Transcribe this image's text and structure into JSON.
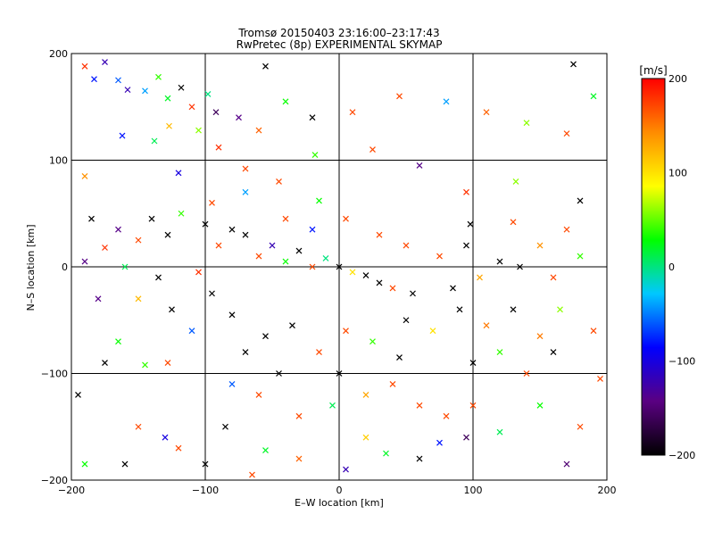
{
  "chart_data": {
    "type": "scatter",
    "title_lines": [
      "Tromsø 20150403 23:16:00–23:17:43",
      "RwPretec (8p) EXPERIMENTAL SKYMAP"
    ],
    "xlabel": "E–W location [km]",
    "ylabel": "N–S location [km]",
    "xlim": [
      -200,
      200
    ],
    "ylim": [
      -200,
      200
    ],
    "x_ticks": [
      -200,
      -100,
      0,
      100,
      200
    ],
    "y_ticks": [
      -200,
      -100,
      0,
      100,
      200
    ],
    "x_tick_labels": [
      "−200",
      "−100",
      "0",
      "100",
      "200"
    ],
    "y_tick_labels": [
      "−200",
      "−100",
      "0",
      "100",
      "200"
    ],
    "grid": true,
    "colorbar": {
      "label": "[m/s]",
      "range": [
        -200,
        200
      ],
      "ticks": [
        200,
        100,
        0,
        -100,
        -200
      ],
      "tick_labels": [
        "200",
        "100",
        "0",
        "−100",
        "−200"
      ],
      "colormap": [
        "#000000",
        "#5a0082",
        "#0000ff",
        "#00c8ff",
        "#00ff00",
        "#ffff00",
        "#ff8c00",
        "#ff0000"
      ]
    },
    "markers": {
      "large": "x",
      "small": "dot"
    },
    "points": [
      {
        "x": -190,
        "y": 188,
        "v": 180,
        "m": "x"
      },
      {
        "x": -183,
        "y": 176,
        "v": -80,
        "m": "x"
      },
      {
        "x": -175,
        "y": 192,
        "v": -120,
        "m": "x"
      },
      {
        "x": -165,
        "y": 175,
        "v": -60,
        "m": "x"
      },
      {
        "x": -158,
        "y": 166,
        "v": -120,
        "m": "x"
      },
      {
        "x": -145,
        "y": 165,
        "v": -40,
        "m": "x"
      },
      {
        "x": -135,
        "y": 178,
        "v": 40,
        "m": "x"
      },
      {
        "x": -128,
        "y": 158,
        "v": 20,
        "m": "x"
      },
      {
        "x": -118,
        "y": 168,
        "v": -200,
        "m": "x"
      },
      {
        "x": -110,
        "y": 150,
        "v": 180,
        "m": "x"
      },
      {
        "x": -98,
        "y": 162,
        "v": 0,
        "m": "x"
      },
      {
        "x": -92,
        "y": 145,
        "v": -160,
        "m": "x"
      },
      {
        "x": -162,
        "y": 123,
        "v": -80,
        "m": "x"
      },
      {
        "x": -138,
        "y": 118,
        "v": 10,
        "m": "x"
      },
      {
        "x": -127,
        "y": 132,
        "v": 120,
        "m": "x"
      },
      {
        "x": -105,
        "y": 128,
        "v": 60,
        "m": "x"
      },
      {
        "x": -90,
        "y": 112,
        "v": 180,
        "m": "x"
      },
      {
        "x": -75,
        "y": 140,
        "v": -140,
        "m": "x"
      },
      {
        "x": -60,
        "y": 128,
        "v": 160,
        "m": "x"
      },
      {
        "x": -40,
        "y": 155,
        "v": 30,
        "m": "x"
      },
      {
        "x": -20,
        "y": 140,
        "v": -200,
        "m": "x"
      },
      {
        "x": 10,
        "y": 145,
        "v": 170,
        "m": "x"
      },
      {
        "x": 45,
        "y": 160,
        "v": 170,
        "m": "x"
      },
      {
        "x": 80,
        "y": 155,
        "v": -40,
        "m": "x"
      },
      {
        "x": 110,
        "y": 145,
        "v": 160,
        "m": "x"
      },
      {
        "x": 140,
        "y": 135,
        "v": 60,
        "m": "x"
      },
      {
        "x": 170,
        "y": 125,
        "v": 170,
        "m": "x"
      },
      {
        "x": 175,
        "y": 190,
        "v": -200,
        "m": "x"
      },
      {
        "x": 190,
        "y": 160,
        "v": 20,
        "m": "x"
      },
      {
        "x": -55,
        "y": 188,
        "v": -200,
        "m": "x"
      },
      {
        "x": -190,
        "y": 85,
        "v": 140,
        "m": "x"
      },
      {
        "x": -120,
        "y": 88,
        "v": -100,
        "m": "x"
      },
      {
        "x": -70,
        "y": 92,
        "v": 170,
        "m": "x"
      },
      {
        "x": -18,
        "y": 105,
        "v": 40,
        "m": "x"
      },
      {
        "x": 25,
        "y": 110,
        "v": 170,
        "m": "x"
      },
      {
        "x": 60,
        "y": 95,
        "v": -140,
        "m": "x"
      },
      {
        "x": 95,
        "y": 70,
        "v": 180,
        "m": "x"
      },
      {
        "x": 132,
        "y": 80,
        "v": 60,
        "m": "x"
      },
      {
        "x": 180,
        "y": 62,
        "v": -200,
        "m": "x"
      },
      {
        "x": -185,
        "y": 45,
        "v": -200,
        "m": "x"
      },
      {
        "x": -165,
        "y": 35,
        "v": -140,
        "m": "x"
      },
      {
        "x": -140,
        "y": 45,
        "v": -200,
        "m": "x"
      },
      {
        "x": -118,
        "y": 50,
        "v": 40,
        "m": "x"
      },
      {
        "x": -100,
        "y": 40,
        "v": -200,
        "m": "x"
      },
      {
        "x": -175,
        "y": 18,
        "v": 180,
        "m": "x"
      },
      {
        "x": -150,
        "y": 25,
        "v": 170,
        "m": "x"
      },
      {
        "x": -128,
        "y": 30,
        "v": -200,
        "m": "x"
      },
      {
        "x": -190,
        "y": 5,
        "v": -140,
        "m": "x"
      },
      {
        "x": -160,
        "y": 0,
        "v": 10,
        "m": "x"
      },
      {
        "x": -135,
        "y": -10,
        "v": -200,
        "m": "x"
      },
      {
        "x": -105,
        "y": -5,
        "v": 180,
        "m": "x"
      },
      {
        "x": -180,
        "y": -30,
        "v": -140,
        "m": "x"
      },
      {
        "x": -150,
        "y": -30,
        "v": 120,
        "m": "x"
      },
      {
        "x": -125,
        "y": -40,
        "v": -200,
        "m": "x"
      },
      {
        "x": -95,
        "y": -25,
        "v": -200,
        "m": "x"
      },
      {
        "x": -80,
        "y": -45,
        "v": -200,
        "m": "x"
      },
      {
        "x": -55,
        "y": -65,
        "v": -200,
        "m": "x"
      },
      {
        "x": -35,
        "y": -55,
        "v": -200,
        "m": "x"
      },
      {
        "x": -165,
        "y": -70,
        "v": 30,
        "m": "x"
      },
      {
        "x": -175,
        "y": -90,
        "v": -200,
        "m": "x"
      },
      {
        "x": -145,
        "y": -92,
        "v": 40,
        "m": "x"
      },
      {
        "x": -128,
        "y": -90,
        "v": 170,
        "m": "x"
      },
      {
        "x": -110,
        "y": -60,
        "v": -60,
        "m": "x"
      },
      {
        "x": -70,
        "y": -80,
        "v": -200,
        "m": "x"
      },
      {
        "x": -195,
        "y": -120,
        "v": -200,
        "m": "x"
      },
      {
        "x": -150,
        "y": -150,
        "v": 170,
        "m": "x"
      },
      {
        "x": -130,
        "y": -160,
        "v": -100,
        "m": "x"
      },
      {
        "x": -120,
        "y": -170,
        "v": 170,
        "m": "x"
      },
      {
        "x": -85,
        "y": -150,
        "v": -200,
        "m": "x"
      },
      {
        "x": -55,
        "y": -172,
        "v": 20,
        "m": "x"
      },
      {
        "x": -30,
        "y": -180,
        "v": 160,
        "m": "x"
      },
      {
        "x": 5,
        "y": -190,
        "v": -120,
        "m": "x"
      },
      {
        "x": -190,
        "y": -185,
        "v": 30,
        "m": "x"
      },
      {
        "x": -160,
        "y": -185,
        "v": -200,
        "m": "x"
      },
      {
        "x": -100,
        "y": -185,
        "v": -200,
        "m": "x"
      },
      {
        "x": -65,
        "y": -195,
        "v": 170,
        "m": "x"
      },
      {
        "x": 0,
        "y": -100,
        "v": -200,
        "m": "x"
      },
      {
        "x": 20,
        "y": -120,
        "v": 130,
        "m": "x"
      },
      {
        "x": 40,
        "y": -110,
        "v": 170,
        "m": "x"
      },
      {
        "x": 60,
        "y": -130,
        "v": 170,
        "m": "x"
      },
      {
        "x": 80,
        "y": -140,
        "v": 170,
        "m": "x"
      },
      {
        "x": 100,
        "y": -130,
        "v": 170,
        "m": "x"
      },
      {
        "x": 95,
        "y": -160,
        "v": -160,
        "m": "x"
      },
      {
        "x": 120,
        "y": -155,
        "v": 10,
        "m": "x"
      },
      {
        "x": 150,
        "y": -130,
        "v": 30,
        "m": "x"
      },
      {
        "x": 20,
        "y": -160,
        "v": 110,
        "m": "x"
      },
      {
        "x": 35,
        "y": -175,
        "v": 20,
        "m": "x"
      },
      {
        "x": 60,
        "y": -180,
        "v": -200,
        "m": "x"
      },
      {
        "x": 75,
        "y": -165,
        "v": -80,
        "m": "x"
      },
      {
        "x": 170,
        "y": -185,
        "v": -150,
        "m": "x"
      },
      {
        "x": 180,
        "y": -150,
        "v": 170,
        "m": "x"
      },
      {
        "x": 195,
        "y": -105,
        "v": 170,
        "m": "x"
      },
      {
        "x": 190,
        "y": -60,
        "v": 170,
        "m": "x"
      },
      {
        "x": 50,
        "y": -50,
        "v": -200,
        "m": "x"
      },
      {
        "x": 70,
        "y": -60,
        "v": 100,
        "m": "x"
      },
      {
        "x": 90,
        "y": -40,
        "v": -200,
        "m": "x"
      },
      {
        "x": 110,
        "y": -55,
        "v": 150,
        "m": "x"
      },
      {
        "x": 130,
        "y": -40,
        "v": -200,
        "m": "x"
      },
      {
        "x": 150,
        "y": -65,
        "v": 150,
        "m": "x"
      },
      {
        "x": 165,
        "y": -40,
        "v": 60,
        "m": "x"
      },
      {
        "x": 85,
        "y": -20,
        "v": -200,
        "m": "x"
      },
      {
        "x": 105,
        "y": -10,
        "v": 130,
        "m": "x"
      },
      {
        "x": 135,
        "y": 0,
        "v": -200,
        "m": "x"
      },
      {
        "x": 160,
        "y": -10,
        "v": 170,
        "m": "x"
      },
      {
        "x": 75,
        "y": 10,
        "v": 170,
        "m": "x"
      },
      {
        "x": 95,
        "y": 20,
        "v": -200,
        "m": "x"
      },
      {
        "x": 120,
        "y": 5,
        "v": -200,
        "m": "x"
      },
      {
        "x": 150,
        "y": 20,
        "v": 140,
        "m": "x"
      },
      {
        "x": 180,
        "y": 10,
        "v": 40,
        "m": "x"
      },
      {
        "x": 98,
        "y": 40,
        "v": -200,
        "m": "x"
      },
      {
        "x": 130,
        "y": 42,
        "v": 170,
        "m": "x"
      },
      {
        "x": 170,
        "y": 35,
        "v": 170,
        "m": "x"
      },
      {
        "x": -60,
        "y": 10,
        "v": 170,
        "m": "x"
      },
      {
        "x": -50,
        "y": 20,
        "v": -120,
        "m": "x"
      },
      {
        "x": -40,
        "y": 5,
        "v": 30,
        "m": "x"
      },
      {
        "x": -30,
        "y": 15,
        "v": -200,
        "m": "x"
      },
      {
        "x": -20,
        "y": 0,
        "v": 170,
        "m": "x"
      },
      {
        "x": -10,
        "y": 8,
        "v": 0,
        "m": "x"
      },
      {
        "x": 0,
        "y": 0,
        "v": -200,
        "m": "x"
      },
      {
        "x": 10,
        "y": -5,
        "v": 100,
        "m": "x"
      },
      {
        "x": 20,
        "y": -8,
        "v": -200,
        "m": "x"
      },
      {
        "x": 30,
        "y": -15,
        "v": -200,
        "m": "x"
      },
      {
        "x": 40,
        "y": -20,
        "v": 170,
        "m": "x"
      },
      {
        "x": 55,
        "y": -25,
        "v": -200,
        "m": "x"
      },
      {
        "x": -70,
        "y": 30,
        "v": -200,
        "m": "x"
      },
      {
        "x": -80,
        "y": 35,
        "v": -200,
        "m": "x"
      },
      {
        "x": -90,
        "y": 20,
        "v": 170,
        "m": "x"
      },
      {
        "x": 5,
        "y": -60,
        "v": 170,
        "m": "x"
      },
      {
        "x": 25,
        "y": -70,
        "v": 40,
        "m": "x"
      },
      {
        "x": 45,
        "y": -85,
        "v": -200,
        "m": "x"
      },
      {
        "x": -15,
        "y": -80,
        "v": 170,
        "m": "x"
      },
      {
        "x": -45,
        "y": -100,
        "v": -200,
        "m": "x"
      },
      {
        "x": -40,
        "y": 45,
        "v": 170,
        "m": "x"
      },
      {
        "x": -20,
        "y": 35,
        "v": -80,
        "m": "x"
      },
      {
        "x": 5,
        "y": 45,
        "v": 170,
        "m": "x"
      },
      {
        "x": 30,
        "y": 30,
        "v": 170,
        "m": "x"
      },
      {
        "x": 50,
        "y": 20,
        "v": 170,
        "m": "x"
      },
      {
        "x": -95,
        "y": 60,
        "v": 170,
        "m": "x"
      },
      {
        "x": -70,
        "y": 70,
        "v": -40,
        "m": "x"
      },
      {
        "x": -45,
        "y": 80,
        "v": 170,
        "m": "x"
      },
      {
        "x": -15,
        "y": 62,
        "v": 30,
        "m": "x"
      },
      {
        "x": 140,
        "y": -100,
        "v": 170,
        "m": "x"
      },
      {
        "x": 160,
        "y": -80,
        "v": -200,
        "m": "x"
      },
      {
        "x": 120,
        "y": -80,
        "v": 40,
        "m": "x"
      },
      {
        "x": 100,
        "y": -90,
        "v": -200,
        "m": "x"
      },
      {
        "x": -5,
        "y": -130,
        "v": 10,
        "m": "x"
      },
      {
        "x": -30,
        "y": -140,
        "v": 170,
        "m": "x"
      },
      {
        "x": -60,
        "y": -120,
        "v": 170,
        "m": "x"
      },
      {
        "x": -80,
        "y": -110,
        "v": -60,
        "m": "x"
      }
    ]
  }
}
